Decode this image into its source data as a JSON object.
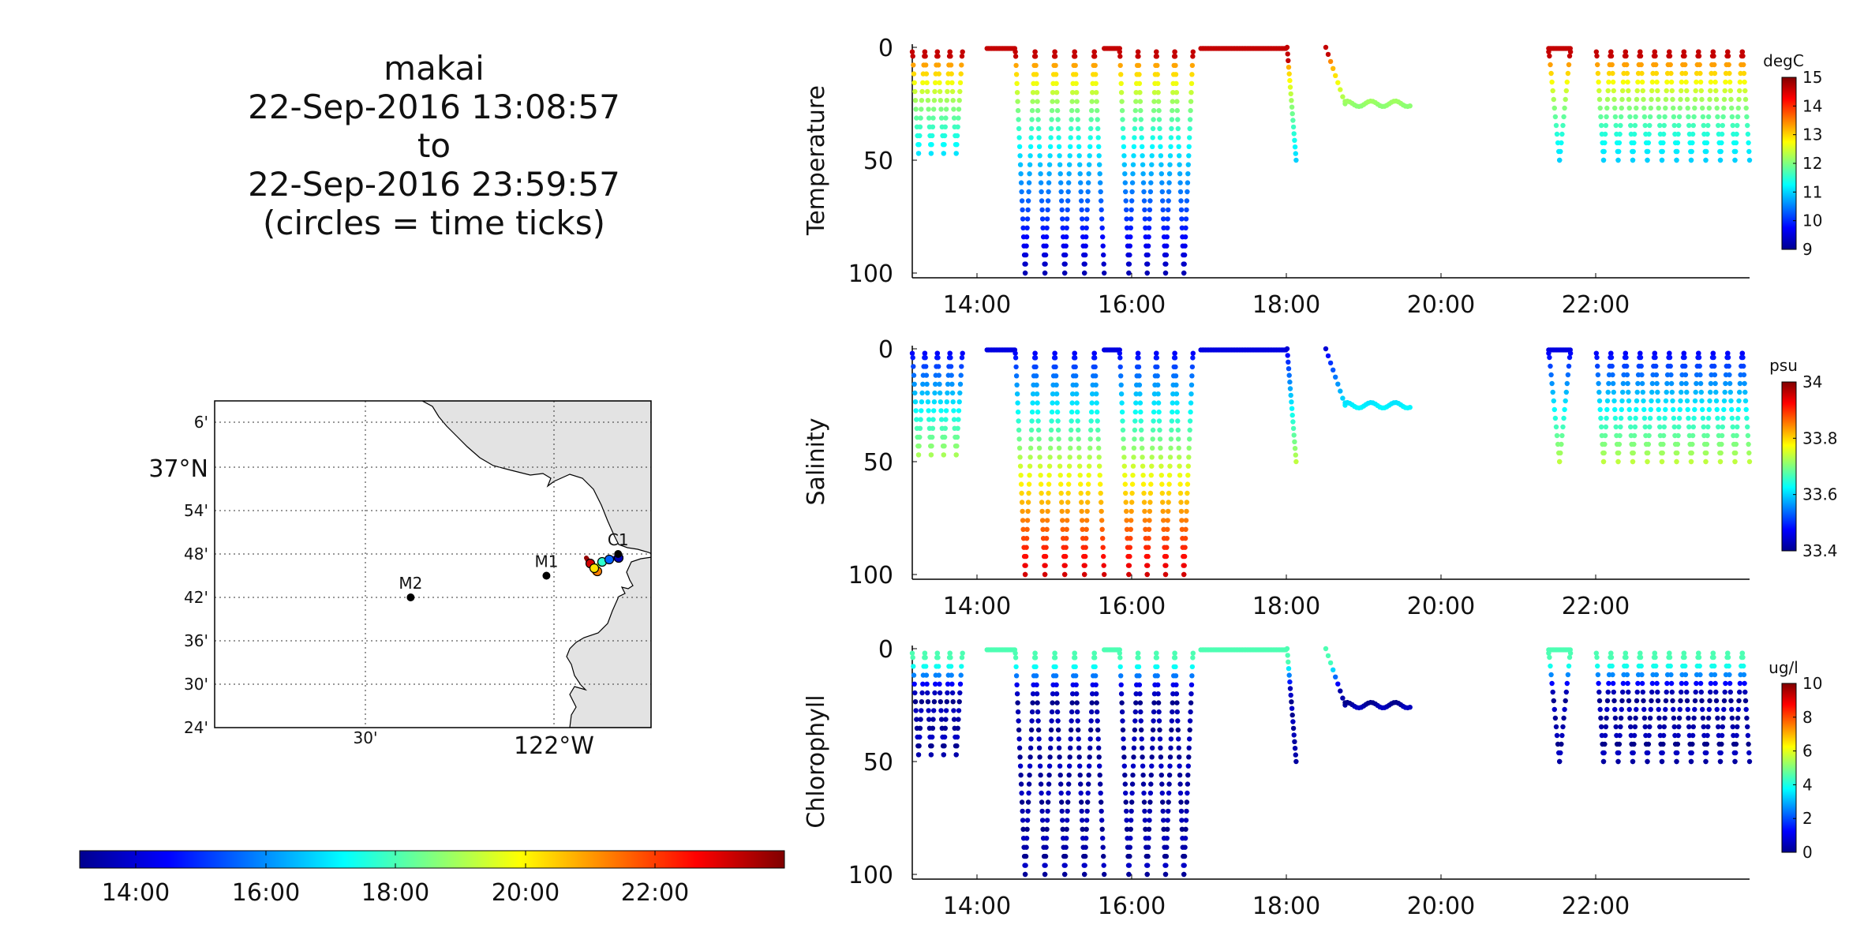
{
  "header": {
    "vehicle": "makai",
    "start": "22-Sep-2016 13:08:57",
    "to_word": "to",
    "end": "22-Sep-2016 23:59:57",
    "note": "(circles = time ticks)"
  },
  "map": {
    "lat_ticks": [
      "6'",
      "37°N",
      "54'",
      "48'",
      "42'",
      "36'",
      "30'",
      "24'"
    ],
    "lon_ticks": [
      "30'",
      "122°W"
    ],
    "stations": [
      {
        "name": "M2",
        "lon": -122.38,
        "lat": 36.7
      },
      {
        "name": "M1",
        "lon": -122.02,
        "lat": 36.75
      },
      {
        "name": "C1",
        "lon": -121.83,
        "lat": 36.8
      }
    ],
    "land_color": "#e3e3e3",
    "time_colorbar_ticks": [
      "14:00",
      "16:00",
      "18:00",
      "20:00",
      "22:00"
    ]
  },
  "chart_data": [
    {
      "type": "scatter",
      "name": "temperature",
      "ylabel": "Temperature",
      "units": "degC",
      "ylim": [
        100,
        0
      ],
      "yticks": [
        0,
        50,
        100
      ],
      "xlim": [
        "13:09",
        "23:59"
      ],
      "xticks": [
        "14:00",
        "16:00",
        "18:00",
        "20:00",
        "22:00"
      ],
      "clim": [
        9,
        15
      ],
      "cticks": [
        "15",
        "14",
        "13",
        "12",
        "11",
        "10",
        "9"
      ],
      "surface_value": 14.6,
      "bottom_value": 9.3
    },
    {
      "type": "scatter",
      "name": "salinity",
      "ylabel": "Salinity",
      "units": "psu",
      "ylim": [
        100,
        0
      ],
      "yticks": [
        0,
        50,
        100
      ],
      "xlim": [
        "13:09",
        "23:59"
      ],
      "xticks": [
        "14:00",
        "16:00",
        "18:00",
        "20:00",
        "22:00"
      ],
      "clim": [
        33.4,
        34
      ],
      "cticks": [
        "34",
        "33.8",
        "33.6",
        "33.4"
      ],
      "surface_value": 33.45,
      "bottom_value": 33.95
    },
    {
      "type": "scatter",
      "name": "chlorophyll",
      "ylabel": "Chlorophyll",
      "units": "ug/l",
      "ylim": [
        100,
        0
      ],
      "yticks": [
        0,
        50,
        100
      ],
      "xlim": [
        "13:09",
        "23:59"
      ],
      "xticks": [
        "14:00",
        "16:00",
        "18:00",
        "20:00",
        "22:00"
      ],
      "clim": [
        0,
        10
      ],
      "cticks": [
        "10",
        "8",
        "6",
        "4",
        "2",
        "0"
      ],
      "surface_value": 4.5,
      "bottom_value": 0.4
    }
  ],
  "profiles": [
    {
      "kind": "yo",
      "start": "13:09",
      "end": "13:48",
      "depth": 47,
      "count": 8
    },
    {
      "kind": "surface",
      "start": "14:07",
      "end": "14:29"
    },
    {
      "kind": "yo",
      "start": "14:29",
      "end": "15:38",
      "depth": 100,
      "count": 9
    },
    {
      "kind": "surface",
      "start": "15:38",
      "end": "15:50"
    },
    {
      "kind": "yo",
      "start": "15:50",
      "end": "16:47",
      "depth": 100,
      "count": 8
    },
    {
      "kind": "surface",
      "start": "16:53",
      "end": "18:00"
    },
    {
      "kind": "descent",
      "start": "18:00",
      "end": "18:07",
      "depth": 50
    },
    {
      "kind": "descent",
      "start": "18:30",
      "end": "18:45",
      "depth": 25
    },
    {
      "kind": "hold",
      "start": "18:45",
      "end": "19:37",
      "depth": 25
    },
    {
      "kind": "surface",
      "start": "21:23",
      "end": "21:40"
    },
    {
      "kind": "yo",
      "start": "21:23",
      "end": "21:40",
      "depth": 50,
      "count": 2
    },
    {
      "kind": "yo",
      "start": "22:00",
      "end": "23:59",
      "depth": 50,
      "count": 21
    }
  ]
}
